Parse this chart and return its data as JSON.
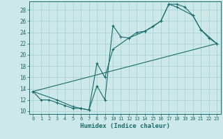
{
  "xlabel": "Humidex (Indice chaleur)",
  "bg_color": "#cce8e8",
  "grid_color": "#aad4d4",
  "line_color": "#1a6b6b",
  "xlim": [
    -0.5,
    23.5
  ],
  "ylim": [
    9.5,
    29.5
  ],
  "xticks": [
    0,
    1,
    2,
    3,
    4,
    5,
    6,
    7,
    8,
    9,
    10,
    11,
    12,
    13,
    14,
    15,
    16,
    17,
    18,
    19,
    20,
    21,
    22,
    23
  ],
  "yticks": [
    10,
    12,
    14,
    16,
    18,
    20,
    22,
    24,
    26,
    28
  ],
  "line1_x": [
    0,
    1,
    2,
    3,
    4,
    5,
    6,
    7,
    8,
    9,
    10,
    11,
    12,
    13,
    14,
    15,
    16,
    17,
    18,
    19,
    20,
    21,
    22,
    23
  ],
  "line1_y": [
    13.5,
    12.0,
    12.0,
    11.5,
    11.0,
    10.5,
    10.5,
    10.2,
    14.5,
    12.0,
    25.2,
    23.2,
    23.0,
    24.0,
    24.2,
    25.0,
    26.0,
    29.0,
    29.0,
    28.5,
    27.0,
    24.5,
    23.0,
    22.0
  ],
  "line2_x": [
    0,
    3,
    5,
    6,
    7,
    8,
    9,
    10,
    12,
    14,
    16,
    17,
    18,
    20,
    21,
    23
  ],
  "line2_y": [
    13.5,
    12.0,
    10.8,
    10.5,
    10.2,
    18.5,
    16.0,
    21.0,
    23.0,
    24.2,
    26.0,
    29.0,
    28.5,
    27.0,
    24.5,
    22.0
  ],
  "line3_x": [
    0,
    23
  ],
  "line3_y": [
    13.5,
    22.0
  ]
}
